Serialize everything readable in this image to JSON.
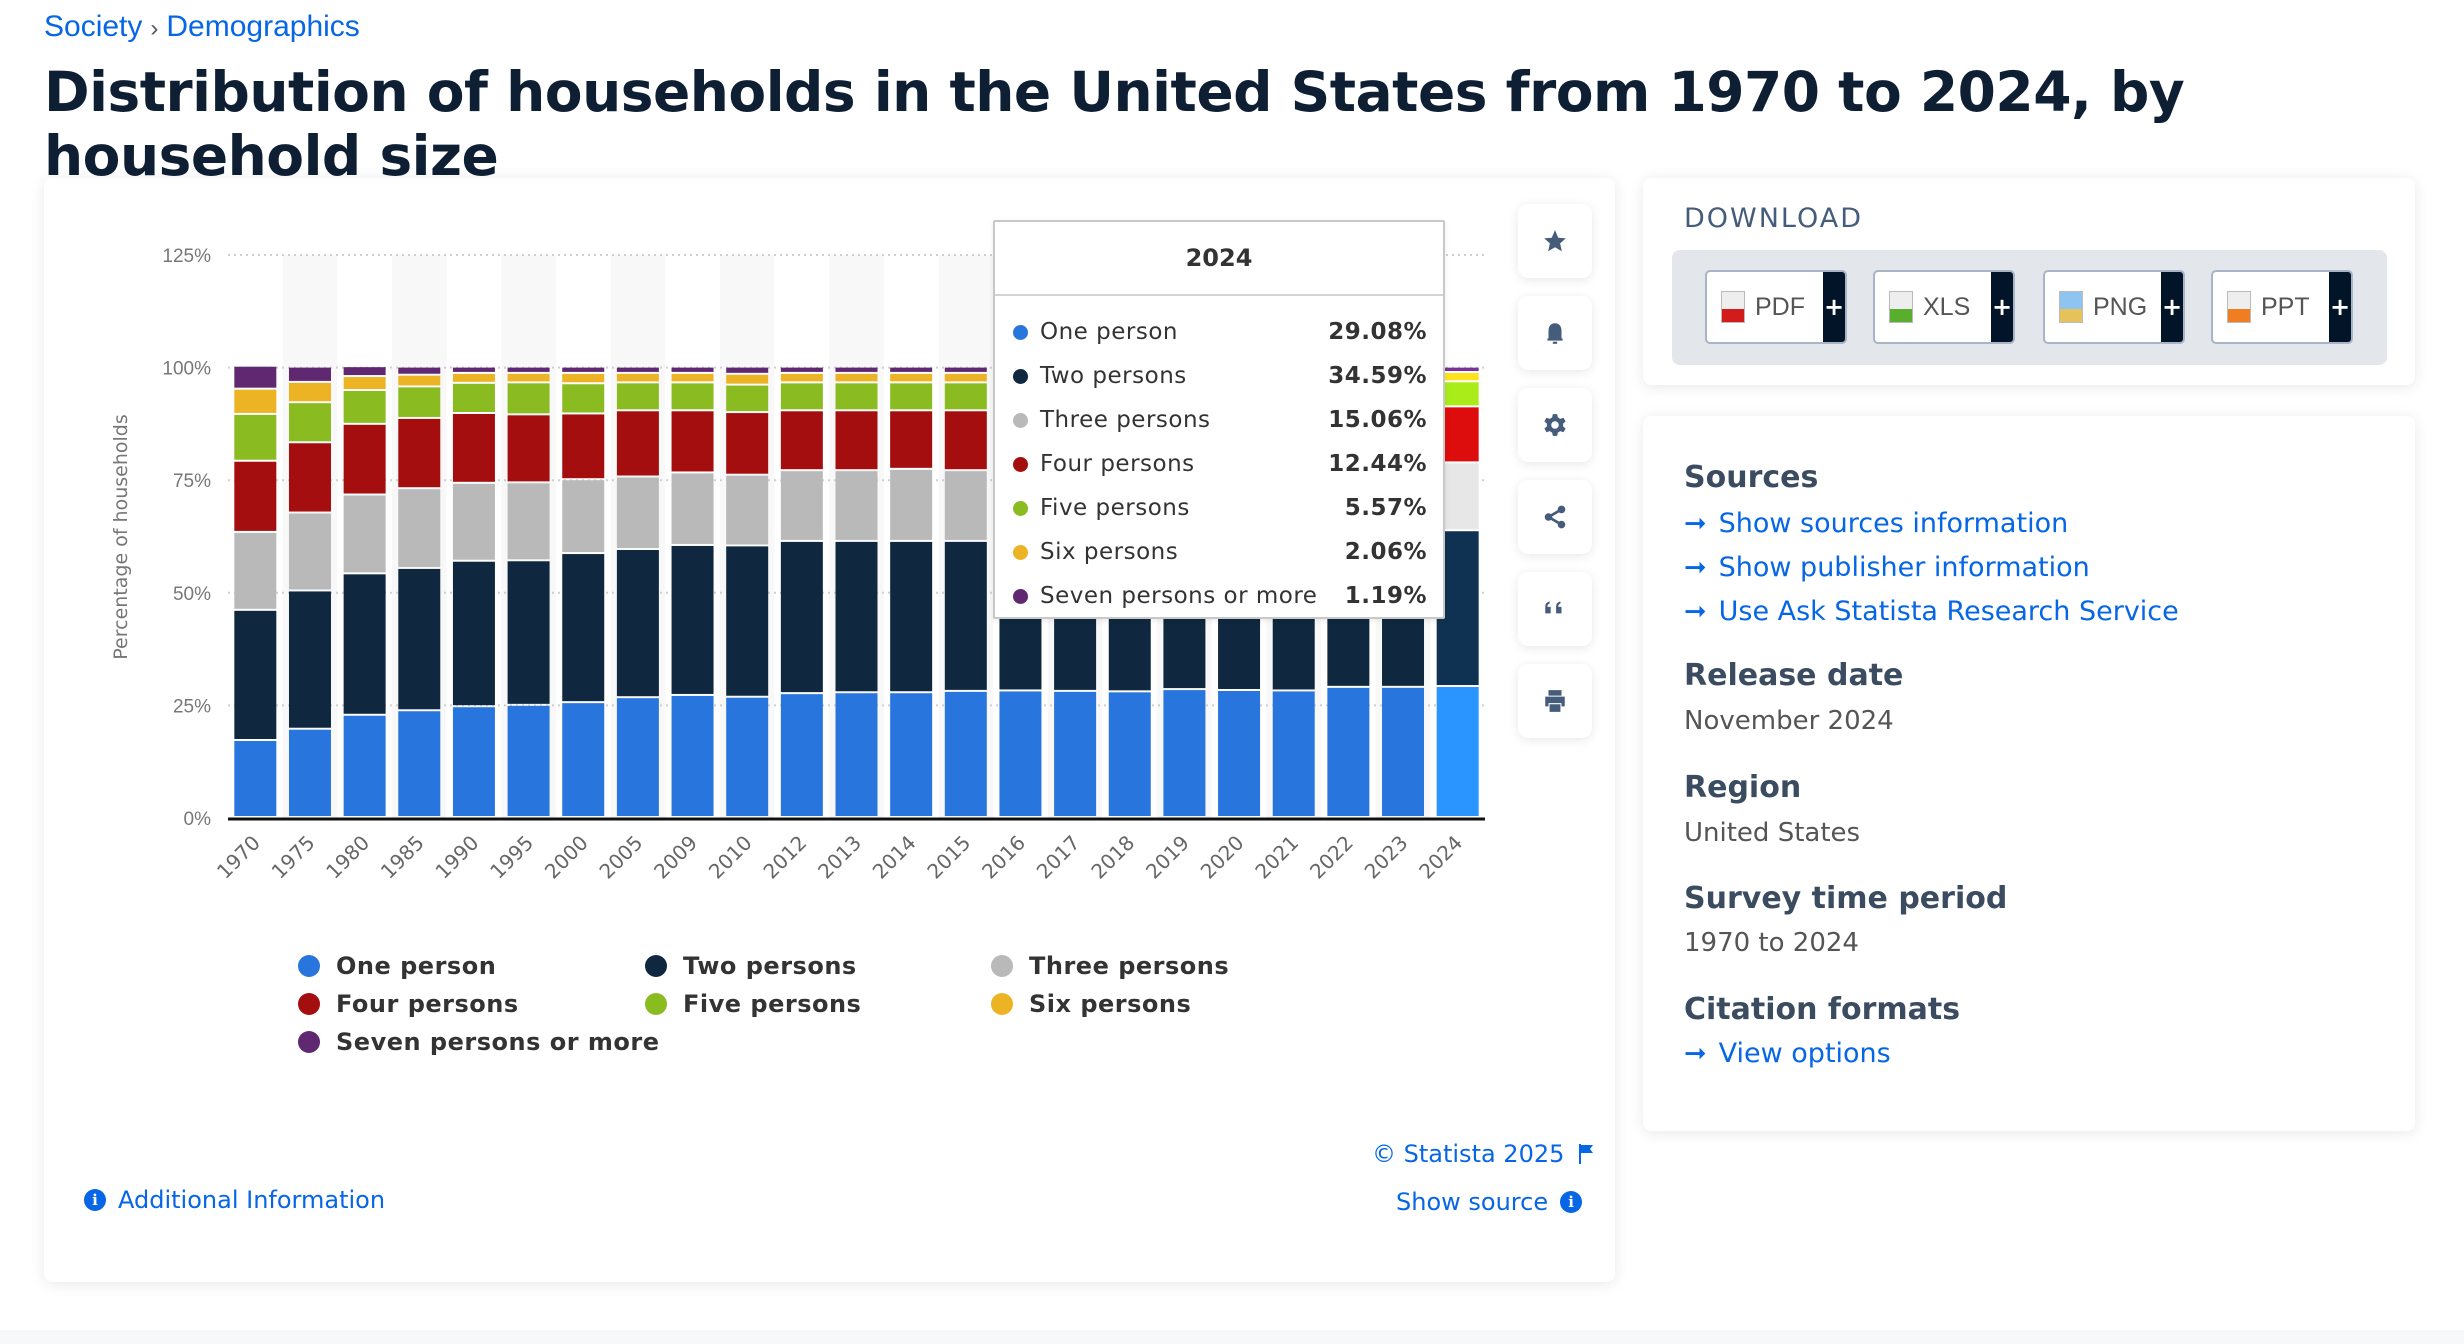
{
  "breadcrumb": [
    "Society",
    "Demographics"
  ],
  "breadcrumb_separator": "›",
  "title": "Distribution of households in the United States from 1970 to 2024, by household size",
  "chart_data": {
    "type": "bar",
    "stacked": true,
    "title": "",
    "xlabel": "",
    "ylabel": "Percentage of households",
    "ylim": [
      0,
      125
    ],
    "y_ticks": [
      "0%",
      "25%",
      "50%",
      "75%",
      "100%",
      "125%"
    ],
    "grid": true,
    "legend_position": "bottom",
    "categories": [
      "1970",
      "1975",
      "1980",
      "1985",
      "1990",
      "1995",
      "2000",
      "2005",
      "2009",
      "2010",
      "2012",
      "2013",
      "2014",
      "2015",
      "2016",
      "2017",
      "2018",
      "2019",
      "2020",
      "2021",
      "2022",
      "2023",
      "2024"
    ],
    "series": [
      {
        "name": "One person",
        "color": "#2876dd",
        "values": [
          17.1,
          19.6,
          22.7,
          23.7,
          24.6,
          24.9,
          25.5,
          26.6,
          27.1,
          26.7,
          27.5,
          27.7,
          27.7,
          28.0,
          28.1,
          28.0,
          27.9,
          28.4,
          28.2,
          28.1,
          28.9,
          28.9,
          29.08
        ]
      },
      {
        "name": "Two persons",
        "color": "#0f283f",
        "values": [
          28.9,
          30.7,
          31.4,
          31.6,
          32.3,
          32.1,
          33.1,
          32.9,
          33.3,
          33.6,
          33.8,
          33.6,
          33.6,
          33.3,
          33.6,
          34.0,
          34.2,
          34.5,
          34.9,
          34.9,
          34.3,
          34.6,
          34.59
        ]
      },
      {
        "name": "Three persons",
        "color": "#b9b9b9",
        "values": [
          17.3,
          17.3,
          17.5,
          17.7,
          17.3,
          17.3,
          16.4,
          16.1,
          16.1,
          15.7,
          15.7,
          15.7,
          16.0,
          15.7,
          15.6,
          15.4,
          15.3,
          15.1,
          15.1,
          15.1,
          15.0,
          14.9,
          15.06
        ]
      },
      {
        "name": "Four persons",
        "color": "#a50e0e",
        "values": [
          15.8,
          15.6,
          15.7,
          15.6,
          15.5,
          15.1,
          14.6,
          14.7,
          13.8,
          13.9,
          13.3,
          13.3,
          13.0,
          13.3,
          13.0,
          12.9,
          12.9,
          12.6,
          12.5,
          12.5,
          12.5,
          12.4,
          12.44
        ]
      },
      {
        "name": "Five persons",
        "color": "#8abb21",
        "values": [
          10.4,
          8.9,
          7.5,
          7.0,
          6.7,
          7.1,
          6.7,
          6.2,
          6.2,
          6.1,
          6.2,
          6.2,
          6.2,
          6.2,
          6.0,
          6.1,
          6.1,
          5.9,
          5.8,
          5.9,
          5.8,
          5.7,
          5.57
        ]
      },
      {
        "name": "Six persons",
        "color": "#ecb424",
        "values": [
          5.6,
          4.5,
          3.1,
          2.6,
          2.2,
          2.1,
          2.3,
          2.1,
          2.1,
          2.4,
          2.1,
          2.1,
          2.1,
          2.1,
          2.3,
          2.2,
          2.2,
          2.1,
          2.1,
          2.1,
          2.1,
          2.1,
          2.06
        ]
      },
      {
        "name": "Seven persons or more",
        "color": "#5f2870",
        "values": [
          5.1,
          3.4,
          2.2,
          1.8,
          1.4,
          1.4,
          1.4,
          1.4,
          1.4,
          1.6,
          1.4,
          1.4,
          1.4,
          1.4,
          1.4,
          1.4,
          1.4,
          1.4,
          1.4,
          1.4,
          1.4,
          1.4,
          1.19
        ]
      }
    ],
    "highlighted_category": "2024"
  },
  "tooltip": {
    "title": "2024",
    "rows": [
      {
        "label": "One person",
        "value": "29.08%",
        "color": "#2876dd"
      },
      {
        "label": "Two persons",
        "value": "34.59%",
        "color": "#0f283f"
      },
      {
        "label": "Three persons",
        "value": "15.06%",
        "color": "#b9b9b9"
      },
      {
        "label": "Four persons",
        "value": "12.44%",
        "color": "#a50e0e"
      },
      {
        "label": "Five persons",
        "value": "5.57%",
        "color": "#8abb21"
      },
      {
        "label": "Six persons",
        "value": "2.06%",
        "color": "#ecb424"
      },
      {
        "label": "Seven persons or more",
        "value": "1.19%",
        "color": "#5f2870"
      }
    ]
  },
  "chart_footer": {
    "copyright": "© Statista 2025",
    "additional_info": "Additional Information",
    "show_source": "Show source"
  },
  "tools": [
    "star-icon",
    "bell-icon",
    "gear-icon",
    "share-icon",
    "quote-icon",
    "print-icon"
  ],
  "download": {
    "title": "DOWNLOAD",
    "buttons": [
      {
        "label": "PDF",
        "color": "#d21b1b"
      },
      {
        "label": "XLS",
        "color": "#5aae2e"
      },
      {
        "label": "PNG",
        "color": "#3a8de0"
      },
      {
        "label": "PPT",
        "color": "#ef7d22"
      }
    ],
    "plus": "+"
  },
  "info": {
    "sources_heading": "Sources",
    "links": [
      "Show sources information",
      "Show publisher information",
      "Use Ask Statista Research Service"
    ],
    "release_date_heading": "Release date",
    "release_date": "November 2024",
    "region_heading": "Region",
    "region": "United States",
    "survey_heading": "Survey time period",
    "survey": "1970 to 2024",
    "citation_heading": "Citation formats",
    "citation_link": "View options"
  }
}
